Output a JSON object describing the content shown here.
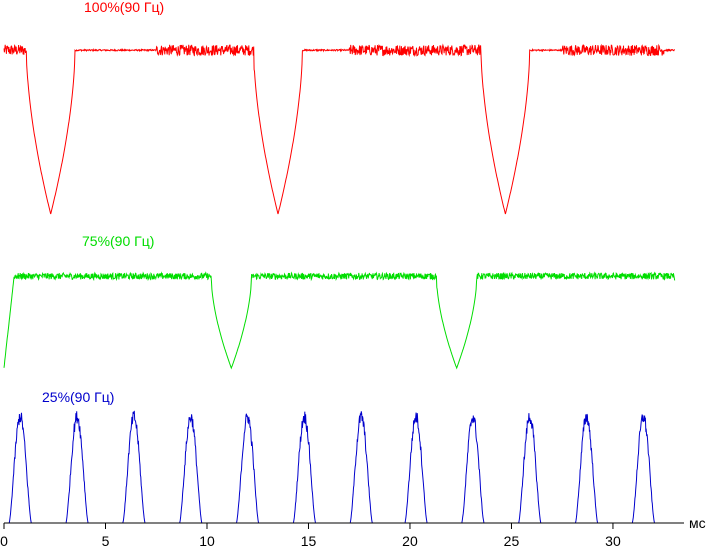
{
  "chart_data": {
    "type": "line",
    "x_unit": "мс",
    "x_ticks": [
      0,
      5,
      10,
      15,
      20,
      25,
      30
    ],
    "xlim": [
      0,
      33.5
    ],
    "grid": false,
    "legend": "none",
    "series": [
      {
        "name": "100%(90 Гц)",
        "color": "#ff0000",
        "description_values": {
          "baseline_level": 0.9,
          "dip_level": 0.0,
          "dip_times_ms": [
            2.3,
            13.5,
            24.7
          ],
          "dip_width_ms": 1.2,
          "noisy_intervals_ms": [
            [
              0,
              1.8
            ],
            [
              7.5,
              13.0
            ],
            [
              17.0,
              24.0
            ],
            [
              27.5,
              32.5
            ]
          ]
        }
      },
      {
        "name": "75%(90 Гц)",
        "color": "#00dd00",
        "description_values": {
          "baseline_level": 0.85,
          "dip_level": 0.0,
          "dip_times_ms": [
            11.2,
            22.3
          ],
          "dip_width_ms": 1.0,
          "start_rise_ms": [
            0,
            0.5
          ],
          "end_fall_ms": [
            33.0,
            33.5
          ],
          "noisy_intervals_ms": [
            [
              0.5,
              10.5
            ],
            [
              12.0,
              21.5
            ],
            [
              23.2,
              33.0
            ]
          ]
        }
      },
      {
        "name": "25%(90 Гц)",
        "color": "#0000cc",
        "description_values": {
          "baseline_level": 0.0,
          "pulse_peak": 1.0,
          "pulse_times_ms": [
            0.8,
            3.6,
            6.4,
            9.2,
            12.0,
            14.8,
            17.6,
            20.3,
            23.1,
            25.9,
            28.7,
            31.5
          ],
          "pulse_width_ms": 1.1
        }
      }
    ]
  }
}
